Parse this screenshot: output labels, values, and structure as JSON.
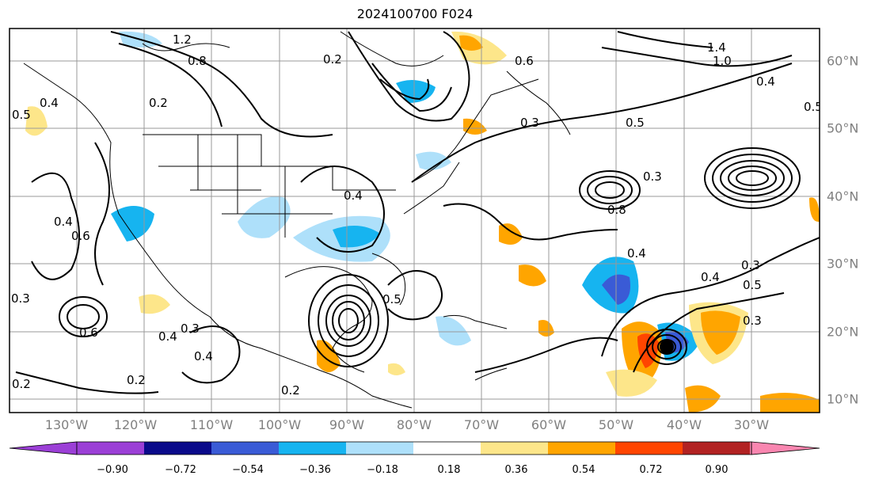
{
  "title": "2024100700 F024",
  "lon_labels": [
    "130°W",
    "120°W",
    "110°W",
    "100°W",
    "90°W",
    "80°W",
    "70°W",
    "60°W",
    "50°W",
    "40°W",
    "30°W"
  ],
  "lat_labels": [
    "60°N",
    "50°N",
    "40°N",
    "30°N",
    "20°N",
    "10°N"
  ],
  "colorbar": {
    "ticks": [
      "−0.90",
      "−0.72",
      "−0.54",
      "−0.36",
      "−0.18",
      "0.18",
      "0.36",
      "0.54",
      "0.72",
      "0.90"
    ],
    "colors": [
      "#9b3fd6",
      "#0a0a8a",
      "#3a5bd6",
      "#16b4f0",
      "#aee0fa",
      "#ffffff",
      "#fde68a",
      "#ffa500",
      "#ff4500",
      "#b22222",
      "#f986b0"
    ]
  },
  "contour_labels": [
    "1.2",
    "0.8",
    "0.2",
    "0.4",
    "0.5",
    "0.6",
    "0.3",
    "0.2",
    "1.4",
    "1.0",
    "0.4",
    "0.5",
    "0.5",
    "0.3",
    "0.4",
    "0.4",
    "0.5",
    "0.3",
    "0.4",
    "0.8",
    "0.2",
    "0.3",
    "0.6",
    "0.4",
    "0.4",
    "0.2",
    "0.2",
    "0.3",
    "0.6",
    "0.4",
    "0.5",
    "0.3"
  ]
}
